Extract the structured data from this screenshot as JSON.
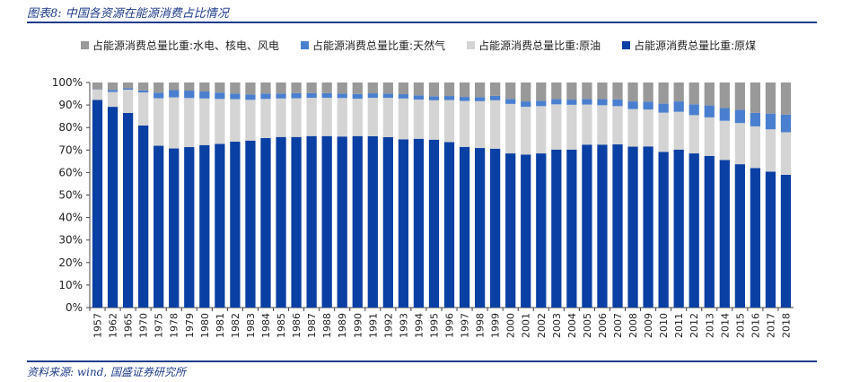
{
  "figure": {
    "title": "图表8:  中国各资源在能源消费占比情况",
    "source": "资料来源: wind, 国盛证券研究所"
  },
  "colors": {
    "coal": "#0a3fa3",
    "oil": "#d4d4d4",
    "gas": "#4a7fcf",
    "other": "#999999",
    "rule": "#1f3c8c"
  },
  "chart_data": {
    "type": "bar",
    "stacked": true,
    "title": "",
    "xlabel": "",
    "ylabel": "",
    "ylim": [
      0,
      100
    ],
    "y_ticks": [
      "0%",
      "10%",
      "20%",
      "30%",
      "40%",
      "50%",
      "60%",
      "70%",
      "80%",
      "90%",
      "100%"
    ],
    "legend_position": "top",
    "grid": false,
    "categories": [
      "1957",
      "1962",
      "1965",
      "1970",
      "1975",
      "1978",
      "1979",
      "1980",
      "1981",
      "1982",
      "1983",
      "1984",
      "1985",
      "1986",
      "1987",
      "1988",
      "1989",
      "1990",
      "1991",
      "1992",
      "1993",
      "1994",
      "1995",
      "1996",
      "1997",
      "1998",
      "1999",
      "2000",
      "2001",
      "2002",
      "2003",
      "2004",
      "2005",
      "2006",
      "2007",
      "2008",
      "2009",
      "2010",
      "2011",
      "2012",
      "2013",
      "2014",
      "2015",
      "2016",
      "2017",
      "2018"
    ],
    "series": [
      {
        "name": "占能源消费总量比重:原煤",
        "color_key": "coal",
        "values": [
          92.3,
          89.2,
          86.5,
          80.9,
          71.9,
          70.7,
          71.3,
          72.2,
          72.7,
          73.7,
          74.2,
          75.3,
          75.8,
          75.8,
          76.2,
          76.2,
          76.0,
          76.2,
          76.1,
          75.7,
          74.7,
          75.0,
          74.6,
          73.5,
          71.4,
          70.9,
          70.6,
          68.5,
          68.0,
          68.5,
          70.2,
          70.2,
          72.4,
          72.4,
          72.5,
          71.5,
          71.6,
          69.2,
          70.2,
          68.5,
          67.4,
          65.6,
          63.7,
          62.0,
          60.4,
          59.0
        ]
      },
      {
        "name": "占能源消费总量比重:原油",
        "color_key": "oil",
        "values": [
          4.6,
          6.6,
          10.3,
          14.7,
          21.1,
          22.7,
          21.8,
          20.7,
          20.0,
          18.9,
          18.1,
          17.4,
          17.1,
          17.2,
          17.0,
          17.0,
          17.1,
          16.6,
          17.1,
          17.5,
          18.2,
          17.4,
          17.5,
          18.7,
          20.4,
          20.8,
          21.5,
          22.0,
          21.2,
          21.0,
          20.1,
          19.9,
          17.8,
          17.5,
          17.0,
          16.7,
          16.4,
          17.4,
          16.8,
          17.0,
          17.1,
          17.4,
          18.3,
          18.5,
          18.8,
          18.9
        ]
      },
      {
        "name": "占能源消费总量比重:天然气",
        "color_key": "gas",
        "values": [
          0.1,
          0.9,
          0.6,
          0.9,
          2.5,
          3.2,
          3.3,
          3.1,
          2.8,
          2.5,
          2.4,
          2.4,
          2.2,
          2.3,
          2.1,
          2.1,
          2.0,
          2.1,
          2.0,
          1.9,
          1.9,
          1.9,
          1.8,
          1.8,
          1.8,
          1.8,
          2.0,
          2.2,
          2.4,
          2.4,
          2.3,
          2.3,
          2.4,
          2.7,
          3.0,
          3.4,
          3.5,
          4.0,
          4.6,
          4.8,
          5.3,
          5.7,
          5.9,
          6.0,
          7.0,
          7.8
        ]
      },
      {
        "name": "占能源消费总量比重:水电、核电、风电",
        "color_key": "other",
        "values": [
          3.0,
          3.3,
          2.6,
          3.5,
          4.5,
          3.4,
          3.6,
          4.0,
          4.5,
          4.9,
          5.3,
          4.9,
          4.9,
          4.7,
          4.7,
          4.7,
          4.9,
          5.1,
          4.8,
          4.9,
          5.2,
          5.7,
          6.1,
          6.0,
          6.4,
          6.5,
          5.9,
          7.3,
          8.4,
          8.1,
          7.4,
          7.6,
          7.4,
          7.4,
          7.5,
          8.4,
          8.5,
          9.4,
          8.4,
          9.7,
          10.2,
          11.3,
          12.1,
          13.5,
          13.8,
          14.3
        ]
      }
    ]
  }
}
